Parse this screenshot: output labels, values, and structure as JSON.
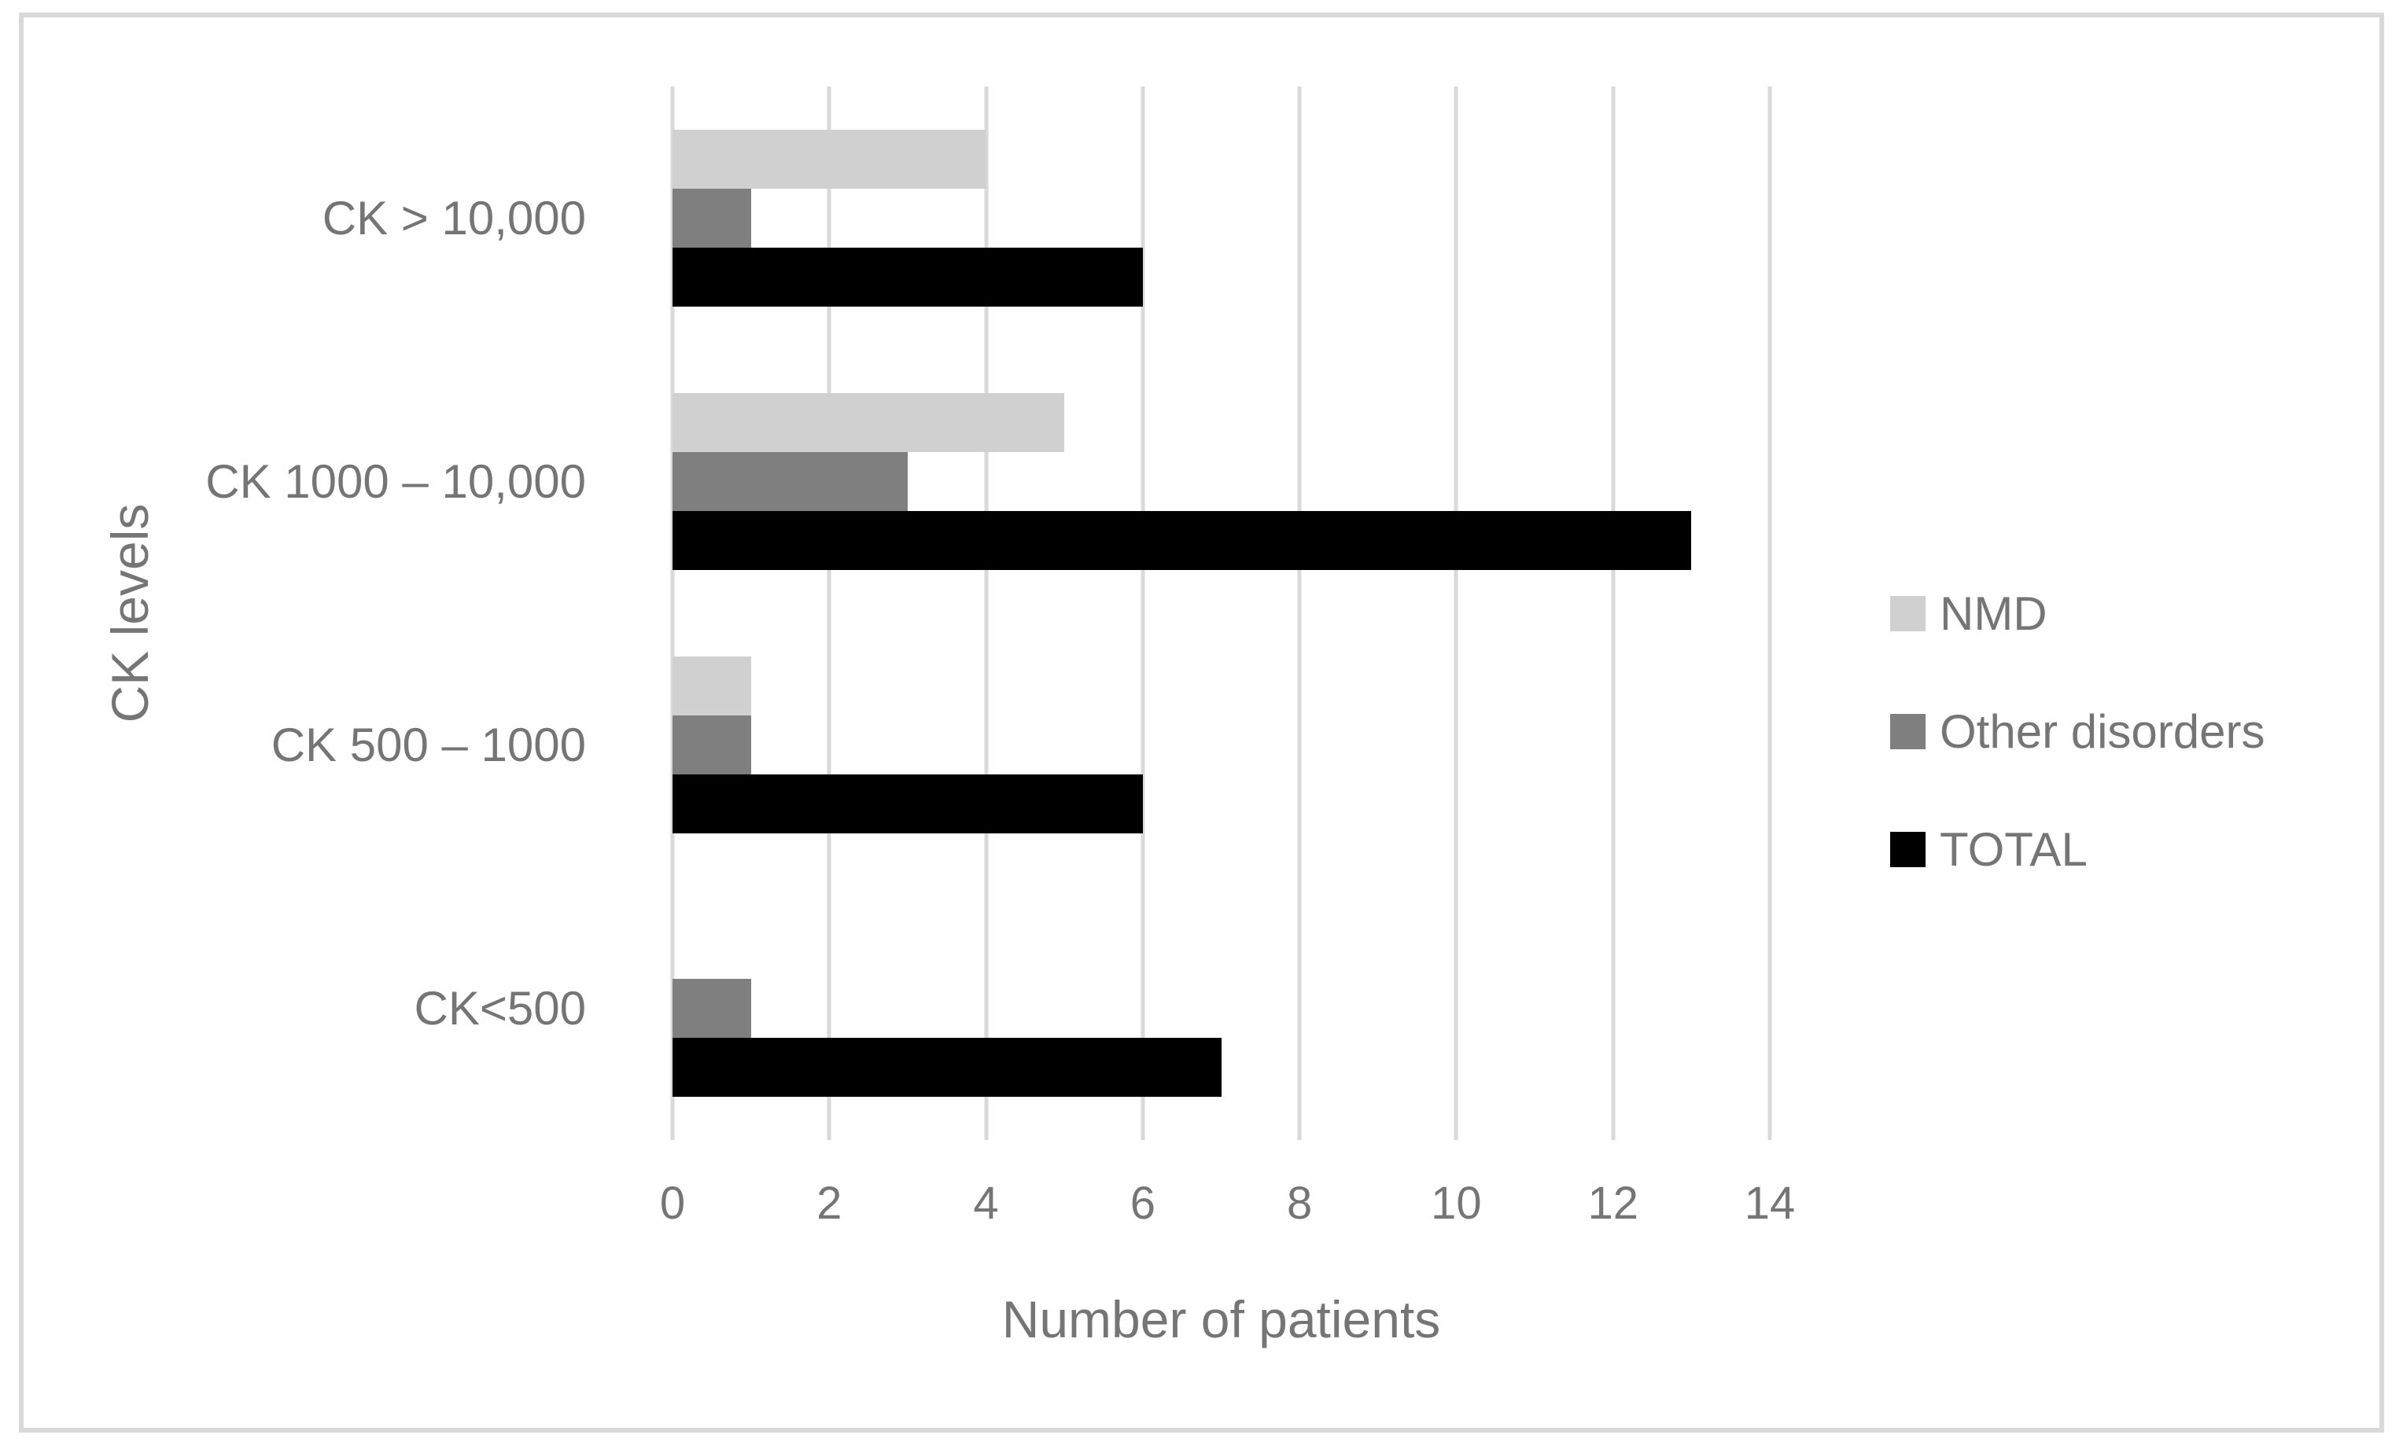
{
  "figure": {
    "background": "#ffffff",
    "border_color": "#d9d9d9",
    "text_color": "#757575",
    "gridline_color": "#d9d9d9"
  },
  "chart_data": {
    "type": "bar",
    "orientation": "horizontal",
    "title": "",
    "xlabel": "Number of patients",
    "ylabel": "CK levels",
    "categories": [
      "CK > 10,000",
      "CK 1000 – 10,000",
      "CK 500 – 1000",
      "CK<500"
    ],
    "series": [
      {
        "name": "NMD",
        "color": "#d0d0d0",
        "values": [
          4,
          5,
          1,
          0
        ]
      },
      {
        "name": "Other disorders",
        "color": "#7f7f7f",
        "values": [
          1,
          3,
          1,
          1
        ]
      },
      {
        "name": "TOTAL",
        "color": "#000000",
        "values": [
          6,
          13,
          6,
          7
        ]
      }
    ],
    "xlim": [
      0,
      14
    ],
    "xticks": [
      0,
      2,
      4,
      6,
      8,
      10,
      12,
      14
    ],
    "grid": true,
    "legend_position": "right"
  }
}
